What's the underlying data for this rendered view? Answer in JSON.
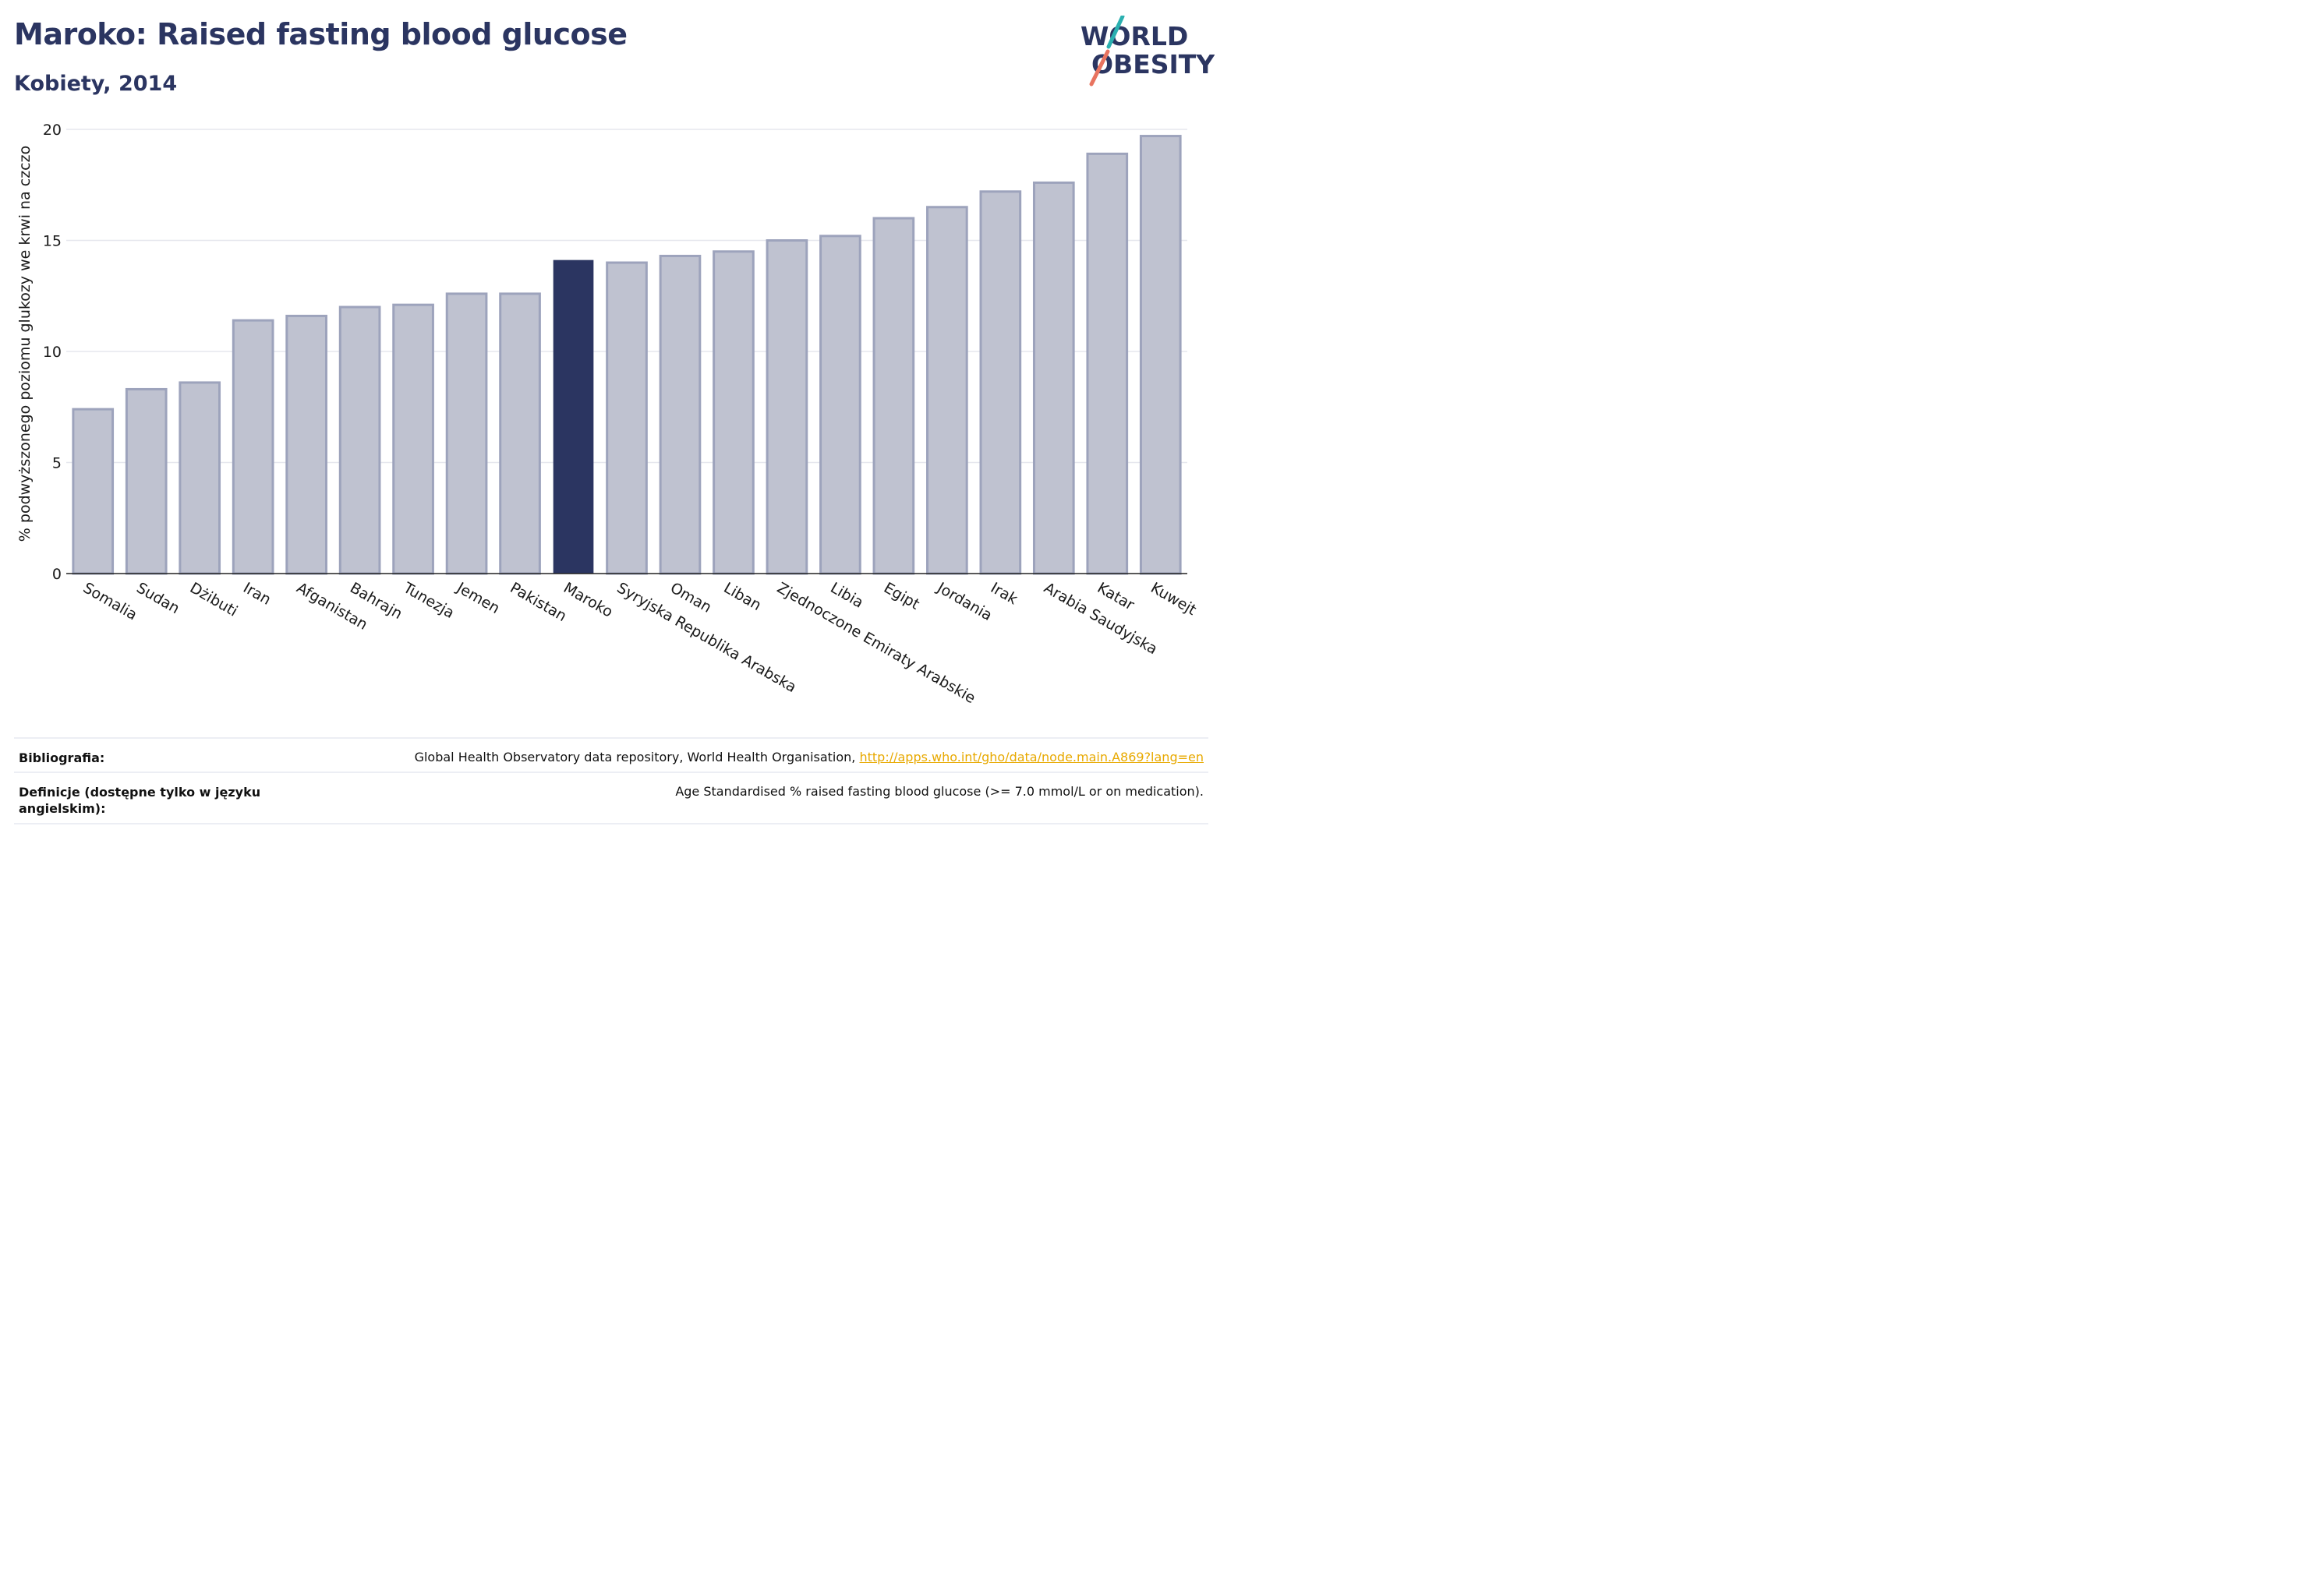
{
  "header": {
    "title": "Maroko: Raised fasting blood glucose",
    "subtitle": "Kobiety, 2014",
    "logo_line1": "WORLD",
    "logo_line2": "OBESITY"
  },
  "chart_data": {
    "type": "bar",
    "title": "Maroko: Raised fasting blood glucose",
    "subtitle": "Kobiety, 2014",
    "xlabel": "",
    "ylabel": "% podwyższonego poziomu glukozy we krwi na czczo",
    "ylim": [
      0,
      20
    ],
    "yticks": [
      0,
      5,
      10,
      15,
      20
    ],
    "grid": true,
    "highlight": "Maroko",
    "categories": [
      "Somalia",
      "Sudan",
      "Dżibuti",
      "Iran",
      "Afganistan",
      "Bahrajn",
      "Tunezja",
      "Jemen",
      "Pakistan",
      "Maroko",
      "Syryjska Republika Arabska",
      "Oman",
      "Liban",
      "Zjednoczone Emiraty Arabskie",
      "Libia",
      "Egipt",
      "Jordania",
      "Irak",
      "Arabia Saudyjska",
      "Katar",
      "Kuwejt"
    ],
    "values": [
      7.4,
      8.3,
      8.6,
      11.4,
      11.6,
      12.0,
      12.1,
      12.6,
      12.6,
      14.1,
      14.0,
      14.3,
      14.5,
      15.0,
      15.2,
      16.0,
      16.5,
      17.2,
      17.6,
      18.9,
      19.7
    ]
  },
  "colors": {
    "highlight": "#2b3561",
    "bar_fill": "#bfc2d0",
    "bar_stroke": "#9da3bc",
    "grid": "#e6e7ee"
  },
  "footer": {
    "bibliography_label": "Bibliografia:",
    "bibliography_text": "Global Health Observatory data repository, World Health Organisation, ",
    "bibliography_link": "http://apps.who.int/gho/data/node.main.A869?lang=en",
    "definition_label_1": "Definicje (dostępne tylko w języku",
    "definition_label_2": "angielskim):",
    "definition_text": "Age Standardised % raised fasting blood glucose (>= 7.0 mmol/L or on medication)."
  }
}
